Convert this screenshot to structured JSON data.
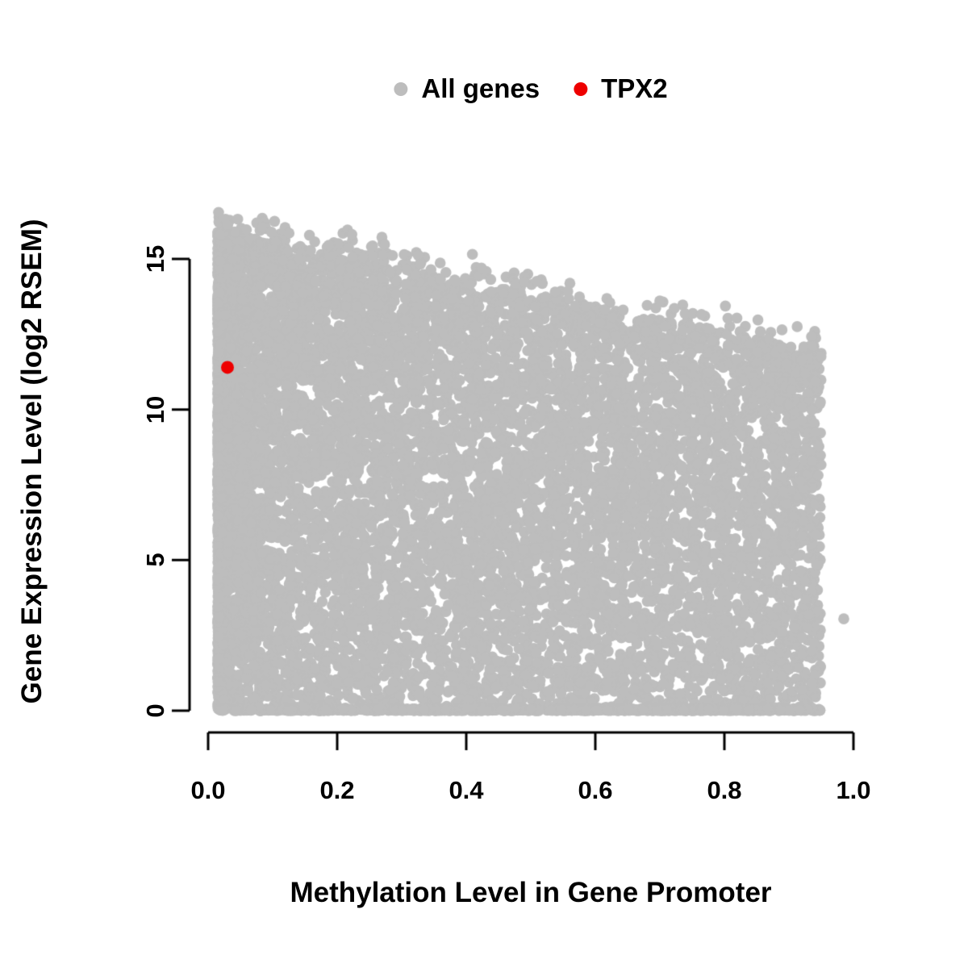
{
  "figure": {
    "background": "#ffffff"
  },
  "chart_data": {
    "type": "scatter",
    "title": "",
    "xlabel": "Methylation Level in Gene Promoter",
    "ylabel": "Gene Expression Level (log2 RSEM)",
    "xlim": [
      0,
      1
    ],
    "ylim": [
      0,
      17
    ],
    "grid": false,
    "legend_position": "top-center",
    "x_ticks": [
      "0.0",
      "0.2",
      "0.4",
      "0.6",
      "0.8",
      "1.0"
    ],
    "x_tick_values": [
      0,
      0.2,
      0.4,
      0.6,
      0.8,
      1.0
    ],
    "y_ticks": [
      "0",
      "5",
      "10",
      "15"
    ],
    "y_tick_values": [
      0,
      5,
      10,
      15
    ],
    "legend": [
      {
        "label": "All genes",
        "color": "#bdbdbd",
        "marker": "filled-circle"
      },
      {
        "label": "TPX2",
        "color": "#ee0000",
        "marker": "filled-circle"
      }
    ],
    "series": [
      {
        "name": "All genes",
        "color": "#bdbdbd",
        "rendering": "procedural_dense_cloud",
        "note": "Thousands of heavily overplotted gray points. Cloud regenerated from a seeded distribution matching the visible density: x in [0.015,0.95] skewed toward 0 (dense vertical strip near x=0), y filled from 0 up to a declining upper envelope (~16.6 at x=0 down to ~12.5 at x=0.95), with a dense row at y=0 and a fuzzy scattered upper edge.",
        "n_points": 9500,
        "seed": 13,
        "x_min": 0.015,
        "x_max": 0.95,
        "x_skew": 2.2,
        "frac_skewed": 0.55,
        "envelope_intercept": 16.6,
        "envelope_slope": -4.3,
        "bottom_line_n": 700,
        "edge_fuzz_n": 380,
        "isolated_points": [
          [
            0.985,
            3.05
          ]
        ]
      },
      {
        "name": "TPX2",
        "color": "#ee0000",
        "points": [
          [
            0.03,
            11.4
          ]
        ]
      }
    ]
  }
}
